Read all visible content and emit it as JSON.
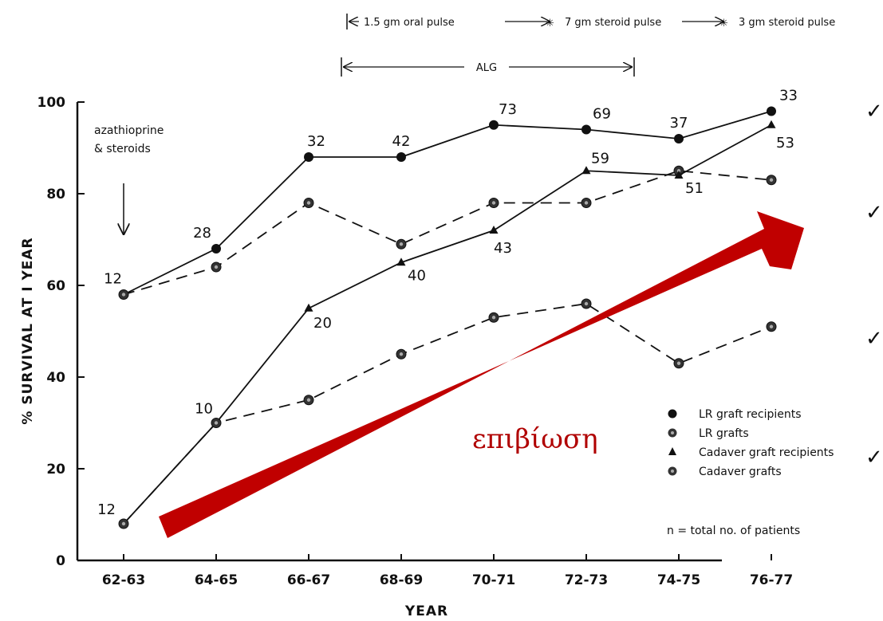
{
  "chart_data": {
    "type": "line",
    "categories": [
      "62-63",
      "64-65",
      "66-67",
      "68-69",
      "70-71",
      "72-73",
      "74-75",
      "76-77"
    ],
    "xlabel": "YEAR",
    "ylabel": "% SURVIVAL AT I YEAR",
    "ylim": [
      0,
      100
    ],
    "yticks": [
      "0",
      "20",
      "40",
      "60",
      "80",
      "100"
    ],
    "grid": false,
    "legend_position": "bottom-right",
    "series": [
      {
        "name": "LR graft recipients",
        "line": "solid",
        "marker": "dot",
        "values": [
          58,
          68,
          88,
          88,
          95,
          94,
          92,
          98
        ]
      },
      {
        "name": "LR grafts",
        "line": "dashed",
        "marker": "ring",
        "values": [
          58,
          64,
          78,
          69,
          78,
          78,
          85,
          83
        ]
      },
      {
        "name": "Cadaver graft recipients",
        "line": "solid",
        "marker": "triangle",
        "values": [
          8,
          30,
          55,
          65,
          72,
          85,
          84,
          95
        ]
      },
      {
        "name": "Cadaver grafts",
        "line": "dashed",
        "marker": "ring",
        "values": [
          8,
          30,
          35,
          45,
          53,
          56,
          43,
          51
        ]
      }
    ],
    "data_labels": [
      {
        "series": 0,
        "index": 0,
        "text": "12"
      },
      {
        "series": 0,
        "index": 1,
        "text": "28"
      },
      {
        "series": 0,
        "index": 2,
        "text": "32"
      },
      {
        "series": 0,
        "index": 3,
        "text": "42"
      },
      {
        "series": 0,
        "index": 4,
        "text": "73"
      },
      {
        "series": 0,
        "index": 5,
        "text": "69"
      },
      {
        "series": 0,
        "index": 6,
        "text": "37"
      },
      {
        "series": 0,
        "index": 7,
        "text": "33"
      },
      {
        "series": 2,
        "index": 0,
        "text": "12"
      },
      {
        "series": 2,
        "index": 1,
        "text": "10"
      },
      {
        "series": 2,
        "index": 2,
        "text": "20"
      },
      {
        "series": 2,
        "index": 3,
        "text": "40"
      },
      {
        "series": 2,
        "index": 4,
        "text": "43"
      },
      {
        "series": 2,
        "index": 5,
        "text": "59"
      },
      {
        "series": 2,
        "index": 6,
        "text": "51"
      },
      {
        "series": 2,
        "index": 7,
        "text": "53"
      }
    ],
    "annotations": {
      "azathioprine_line1": "azathioprine",
      "azathioprine_line2": "& steroids",
      "oral_pulse": "1.5 gm oral pulse",
      "steroid_pulse_7": "7 gm steroid pulse",
      "steroid_pulse_3": "3 gm steroid pulse",
      "alg": "ALG",
      "legend_note": "n = total no. of patients",
      "overlay_word": "επιβίωση"
    },
    "overlay_arrow_color": "#c00000"
  }
}
